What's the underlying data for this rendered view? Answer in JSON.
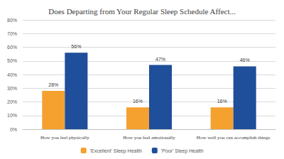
{
  "chart_data": {
    "type": "bar",
    "title": "Does Departing from Your Regular Sleep Schedule Affect...",
    "categories": [
      "How you feel physically",
      "How you feel emotionally",
      "How well you can accomplish things"
    ],
    "series": [
      {
        "name": "'Excellent' Sleep Health",
        "color": "#F4A12F",
        "values": [
          28,
          16,
          16
        ],
        "value_labels": [
          "28%",
          "16%",
          "16%"
        ]
      },
      {
        "name": "'Poor' Sleep Health",
        "color": "#1F4E9A",
        "values": [
          56,
          47,
          46
        ],
        "value_labels": [
          "56%",
          "47%",
          "46%"
        ]
      }
    ],
    "ylim": [
      0,
      80
    ],
    "yticks": [
      {
        "value": 0,
        "label": "0%"
      },
      {
        "value": 10,
        "label": "10%"
      },
      {
        "value": 20,
        "label": "20%"
      },
      {
        "value": 30,
        "label": "30%"
      },
      {
        "value": 40,
        "label": "40%"
      },
      {
        "value": 50,
        "label": "50%"
      },
      {
        "value": 60,
        "label": "60%"
      },
      {
        "value": 70,
        "label": "70%"
      },
      {
        "value": 80,
        "label": "80%"
      }
    ],
    "grid": true,
    "legend": "bottom",
    "data_labels": true
  }
}
